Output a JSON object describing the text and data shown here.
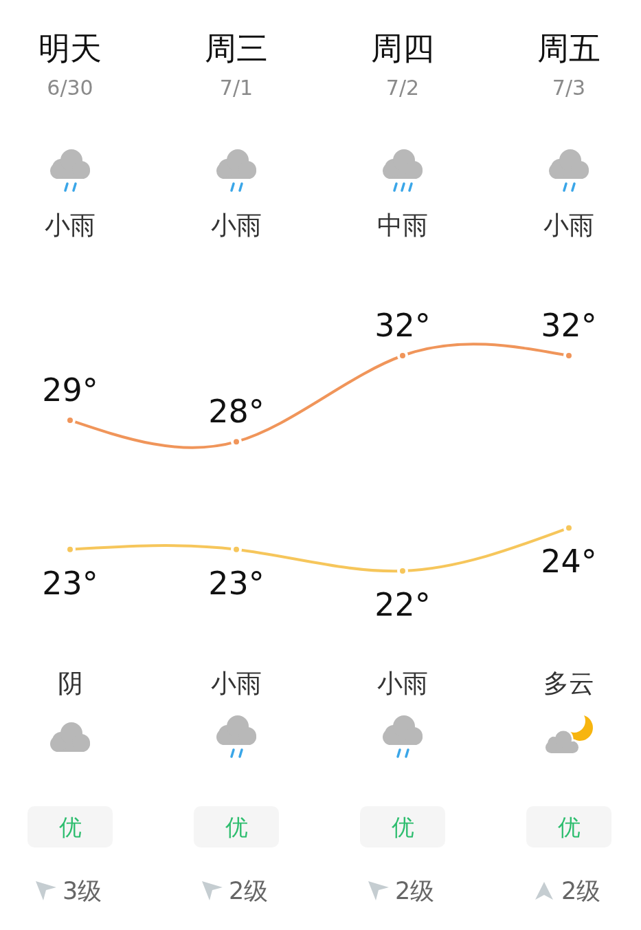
{
  "chart_data": {
    "type": "line",
    "categories": [
      "明天",
      "周三",
      "周四",
      "周五"
    ],
    "tick_labels": "x",
    "marker": "circle",
    "line_style": "solid",
    "series": [
      {
        "color": "#f0955a",
        "values": [
          29,
          28,
          32,
          32
        ],
        "value_labels": [
          "29°",
          "28°",
          "32°",
          "32°"
        ]
      },
      {
        "color": "#f6c65b",
        "values": [
          23,
          23,
          22,
          24
        ],
        "value_labels": [
          "23°",
          "23°",
          "22°",
          "24°"
        ]
      }
    ],
    "annotations": [
      "6/30",
      "7/1",
      "7/2",
      "7/3",
      "小雨",
      "小雨",
      "中雨",
      "小雨",
      "阴",
      "小雨",
      "小雨",
      "多云",
      "优",
      "优",
      "优",
      "优",
      "3级",
      "2级",
      "2级",
      "2级"
    ]
  }
}
